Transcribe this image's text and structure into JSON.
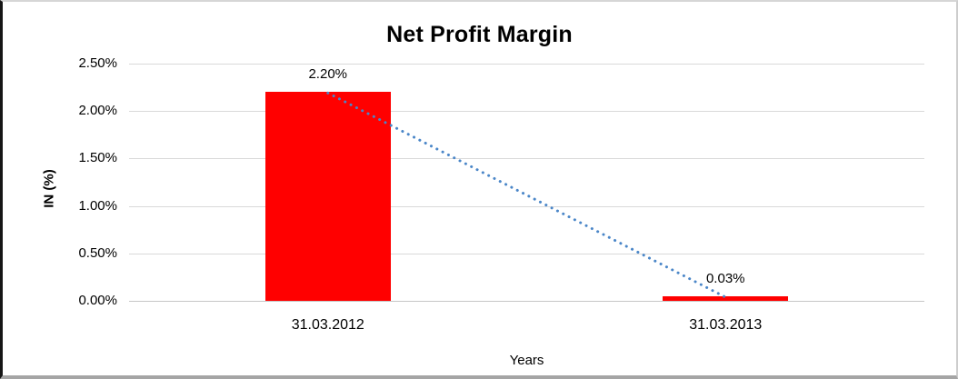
{
  "chart_data": {
    "type": "bar",
    "title": "Net Profit Margin",
    "xlabel": "Years",
    "ylabel": "IN (%)",
    "categories": [
      "31.03.2012",
      "31.03.2013"
    ],
    "values": [
      2.2,
      0.03
    ],
    "value_labels": [
      "2.20%",
      "0.03%"
    ],
    "ylim": [
      0,
      2.5
    ],
    "ytick_step": 0.5,
    "ytick_labels": [
      "0.00%",
      "0.50%",
      "1.00%",
      "1.50%",
      "2.00%",
      "2.50%"
    ],
    "grid": true,
    "legend": "none",
    "bar_color": "#ff0000",
    "gridline_color": "#d9d9d9",
    "trendline": {
      "style": "dotted",
      "color": "#4a86c8",
      "connects": "bar tops from 31.03.2012 (2.20%) down to 31.03.2013 (0.03%)"
    }
  }
}
